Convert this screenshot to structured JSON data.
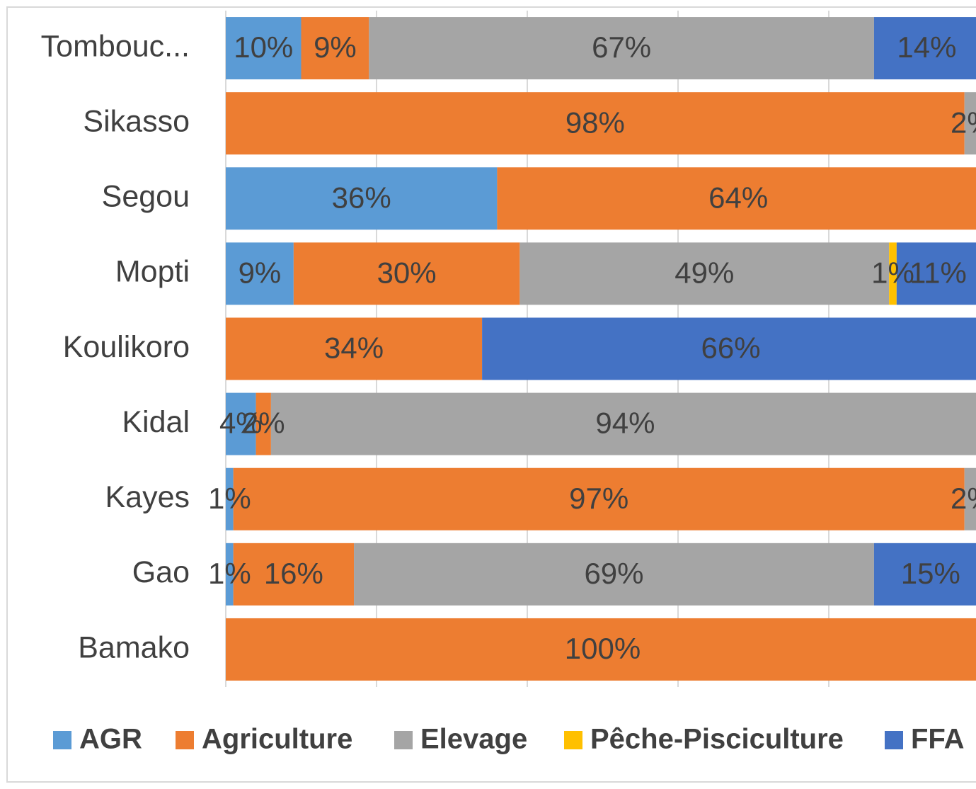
{
  "chart_data": {
    "type": "stacked_bar_horizontal",
    "categories": [
      "Tombouc...",
      "Sikasso",
      "Segou",
      "Mopti",
      "Koulikoro",
      "Kidal",
      "Kayes",
      "Gao",
      "Bamako"
    ],
    "series": [
      {
        "name": "AGR",
        "color": "#5b9bd5",
        "values": [
          10,
          null,
          36,
          9,
          null,
          4,
          1,
          1,
          null
        ],
        "value_labels": [
          "10%",
          null,
          "36%",
          "9%",
          null,
          "4%",
          "1%",
          "1%",
          null
        ]
      },
      {
        "name": "Agriculture",
        "color": "#ed7d31",
        "values": [
          9,
          98,
          64,
          30,
          34,
          2,
          97,
          16,
          100
        ],
        "value_labels": [
          "9%",
          "98%",
          "64%",
          "30%",
          "34%",
          "2%",
          "97%",
          "16%",
          "100%"
        ]
      },
      {
        "name": "Elevage",
        "color": "#a5a5a5",
        "values": [
          67,
          2,
          null,
          49,
          null,
          94,
          2,
          69,
          null
        ],
        "value_labels": [
          "67%",
          "2%",
          null,
          "49%",
          null,
          "94%",
          "2%",
          "69%",
          null
        ]
      },
      {
        "name": "Pêche-Pisciculture",
        "color": "#ffc000",
        "values": [
          null,
          null,
          null,
          1,
          null,
          null,
          null,
          null,
          null
        ],
        "value_labels": [
          null,
          null,
          null,
          "1%",
          null,
          null,
          null,
          null,
          null
        ]
      },
      {
        "name": "FFA",
        "color": "#4472c4",
        "values": [
          14,
          null,
          null,
          11,
          66,
          null,
          null,
          15,
          null
        ],
        "value_labels": [
          "14%",
          null,
          null,
          "11%",
          "66%",
          null,
          null,
          "15%",
          null
        ]
      }
    ],
    "xlim": [
      0,
      100
    ],
    "xticks": [
      0,
      20,
      40,
      60,
      80,
      100
    ],
    "grid": true,
    "legend": "bottom"
  }
}
